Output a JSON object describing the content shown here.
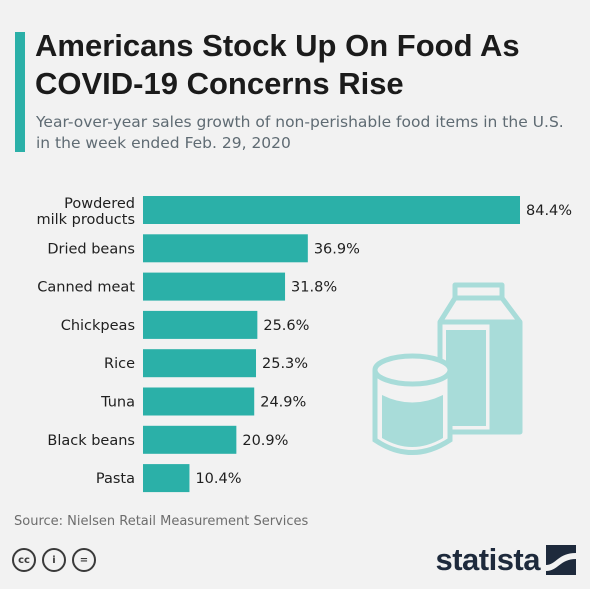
{
  "header": {
    "title": "Americans Stock Up On Food As COVID-19 Concerns Rise",
    "subtitle": "Year-over-year sales growth of non-perishable food items in the U.S. in the week ended Feb. 29, 2020"
  },
  "colors": {
    "accent": "#2bb0a8",
    "bar": "#2bb0a8",
    "illustration": "#a8dcd9",
    "brand": "#1e2a3c"
  },
  "chart_data": {
    "type": "bar",
    "orientation": "horizontal",
    "categories": [
      "Powdered milk products",
      "Dried beans",
      "Canned meat",
      "Chickpeas",
      "Rice",
      "Tuna",
      "Black beans",
      "Pasta"
    ],
    "values": [
      84.4,
      36.9,
      31.8,
      25.6,
      25.3,
      24.9,
      20.9,
      10.4
    ],
    "value_labels": [
      "84.4%",
      "36.9%",
      "31.8%",
      "25.6%",
      "25.3%",
      "24.9%",
      "20.9%",
      "10.4%"
    ],
    "title": "Americans Stock Up On Food As COVID-19 Concerns Rise",
    "xlim": [
      0,
      84.4
    ],
    "grid": false,
    "legend": "none"
  },
  "footer": {
    "source": "Source: Nielsen Retail Measurement Services",
    "cc_icons": [
      "creative-commons-icon",
      "attribution-icon",
      "no-derivatives-icon"
    ],
    "cc_glyphs": [
      "cc",
      "i",
      "="
    ],
    "brand": "statista"
  }
}
